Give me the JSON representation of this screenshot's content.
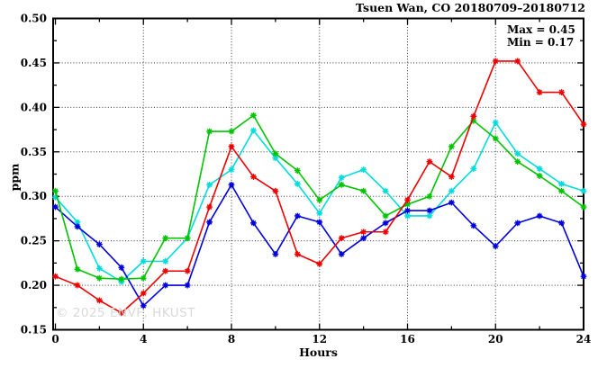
{
  "figure": {
    "title": "Tsuen Wan, CO 20180709–20180712",
    "y_axis_label": "ppm",
    "x_axis_label": "Hours",
    "annotation": {
      "max_label": "Max = 0.45",
      "min_label": "Min = 0.17"
    },
    "watermark": "© 2025 ENVF, HKUST"
  },
  "chart_data": {
    "type": "line",
    "title": "Tsuen Wan, CO 20180709–20180712",
    "xlabel": "Hours",
    "ylabel": "ppm",
    "xlim": [
      0,
      24
    ],
    "ylim": [
      0.15,
      0.5
    ],
    "x_major_ticks": [
      0,
      4,
      8,
      12,
      16,
      20,
      24
    ],
    "x_minor_tick_step": 2,
    "y_major_ticks": [
      0.15,
      0.2,
      0.25,
      0.3,
      0.35,
      0.4,
      0.45,
      0.5
    ],
    "y_minor_tick_step": 0.025,
    "x_grid_hours": [
      4,
      8,
      12,
      16,
      20
    ],
    "y_grid_values": [
      0.2,
      0.25,
      0.3,
      0.35,
      0.4,
      0.45
    ],
    "grid": true,
    "legend_position": "none",
    "marker": "asterisk",
    "max_value": 0.45,
    "min_value": 0.17,
    "x": [
      0,
      1,
      2,
      3,
      4,
      5,
      6,
      7,
      8,
      9,
      10,
      11,
      12,
      13,
      14,
      15,
      16,
      17,
      18,
      19,
      20,
      21,
      22,
      23,
      24
    ],
    "series": [
      {
        "name": "red-series",
        "color": "#ee0000",
        "values": [
          0.21,
          0.2,
          0.183,
          0.169,
          0.191,
          0.216,
          0.216,
          0.288,
          0.356,
          0.322,
          0.306,
          0.235,
          0.224,
          0.253,
          0.26,
          0.26,
          0.296,
          0.339,
          0.322,
          0.39,
          0.452,
          0.452,
          0.417,
          0.417,
          0.381
        ]
      },
      {
        "name": "green-series",
        "color": "#00c400",
        "values": [
          0.306,
          0.218,
          0.208,
          0.207,
          0.208,
          0.253,
          0.253,
          0.373,
          0.373,
          0.391,
          0.348,
          0.329,
          0.296,
          0.313,
          0.306,
          0.278,
          0.291,
          0.3,
          0.356,
          0.385,
          0.365,
          0.339,
          0.323,
          0.306,
          0.288
        ]
      },
      {
        "name": "cyan-series",
        "color": "#00dcdc",
        "values": [
          0.299,
          0.271,
          0.219,
          0.204,
          0.227,
          0.227,
          0.253,
          0.313,
          0.33,
          0.374,
          0.343,
          0.314,
          0.281,
          0.321,
          0.33,
          0.306,
          0.278,
          0.278,
          0.306,
          0.331,
          0.383,
          0.348,
          0.331,
          0.314,
          0.306
        ]
      },
      {
        "name": "blue-series",
        "color": "#0000dd",
        "values": [
          0.288,
          0.266,
          0.246,
          0.22,
          0.177,
          0.2,
          0.2,
          0.271,
          0.313,
          0.27,
          0.235,
          0.278,
          0.271,
          0.235,
          0.253,
          0.27,
          0.284,
          0.284,
          0.293,
          0.267,
          0.244,
          0.27,
          0.278,
          0.27,
          0.21
        ]
      }
    ]
  }
}
